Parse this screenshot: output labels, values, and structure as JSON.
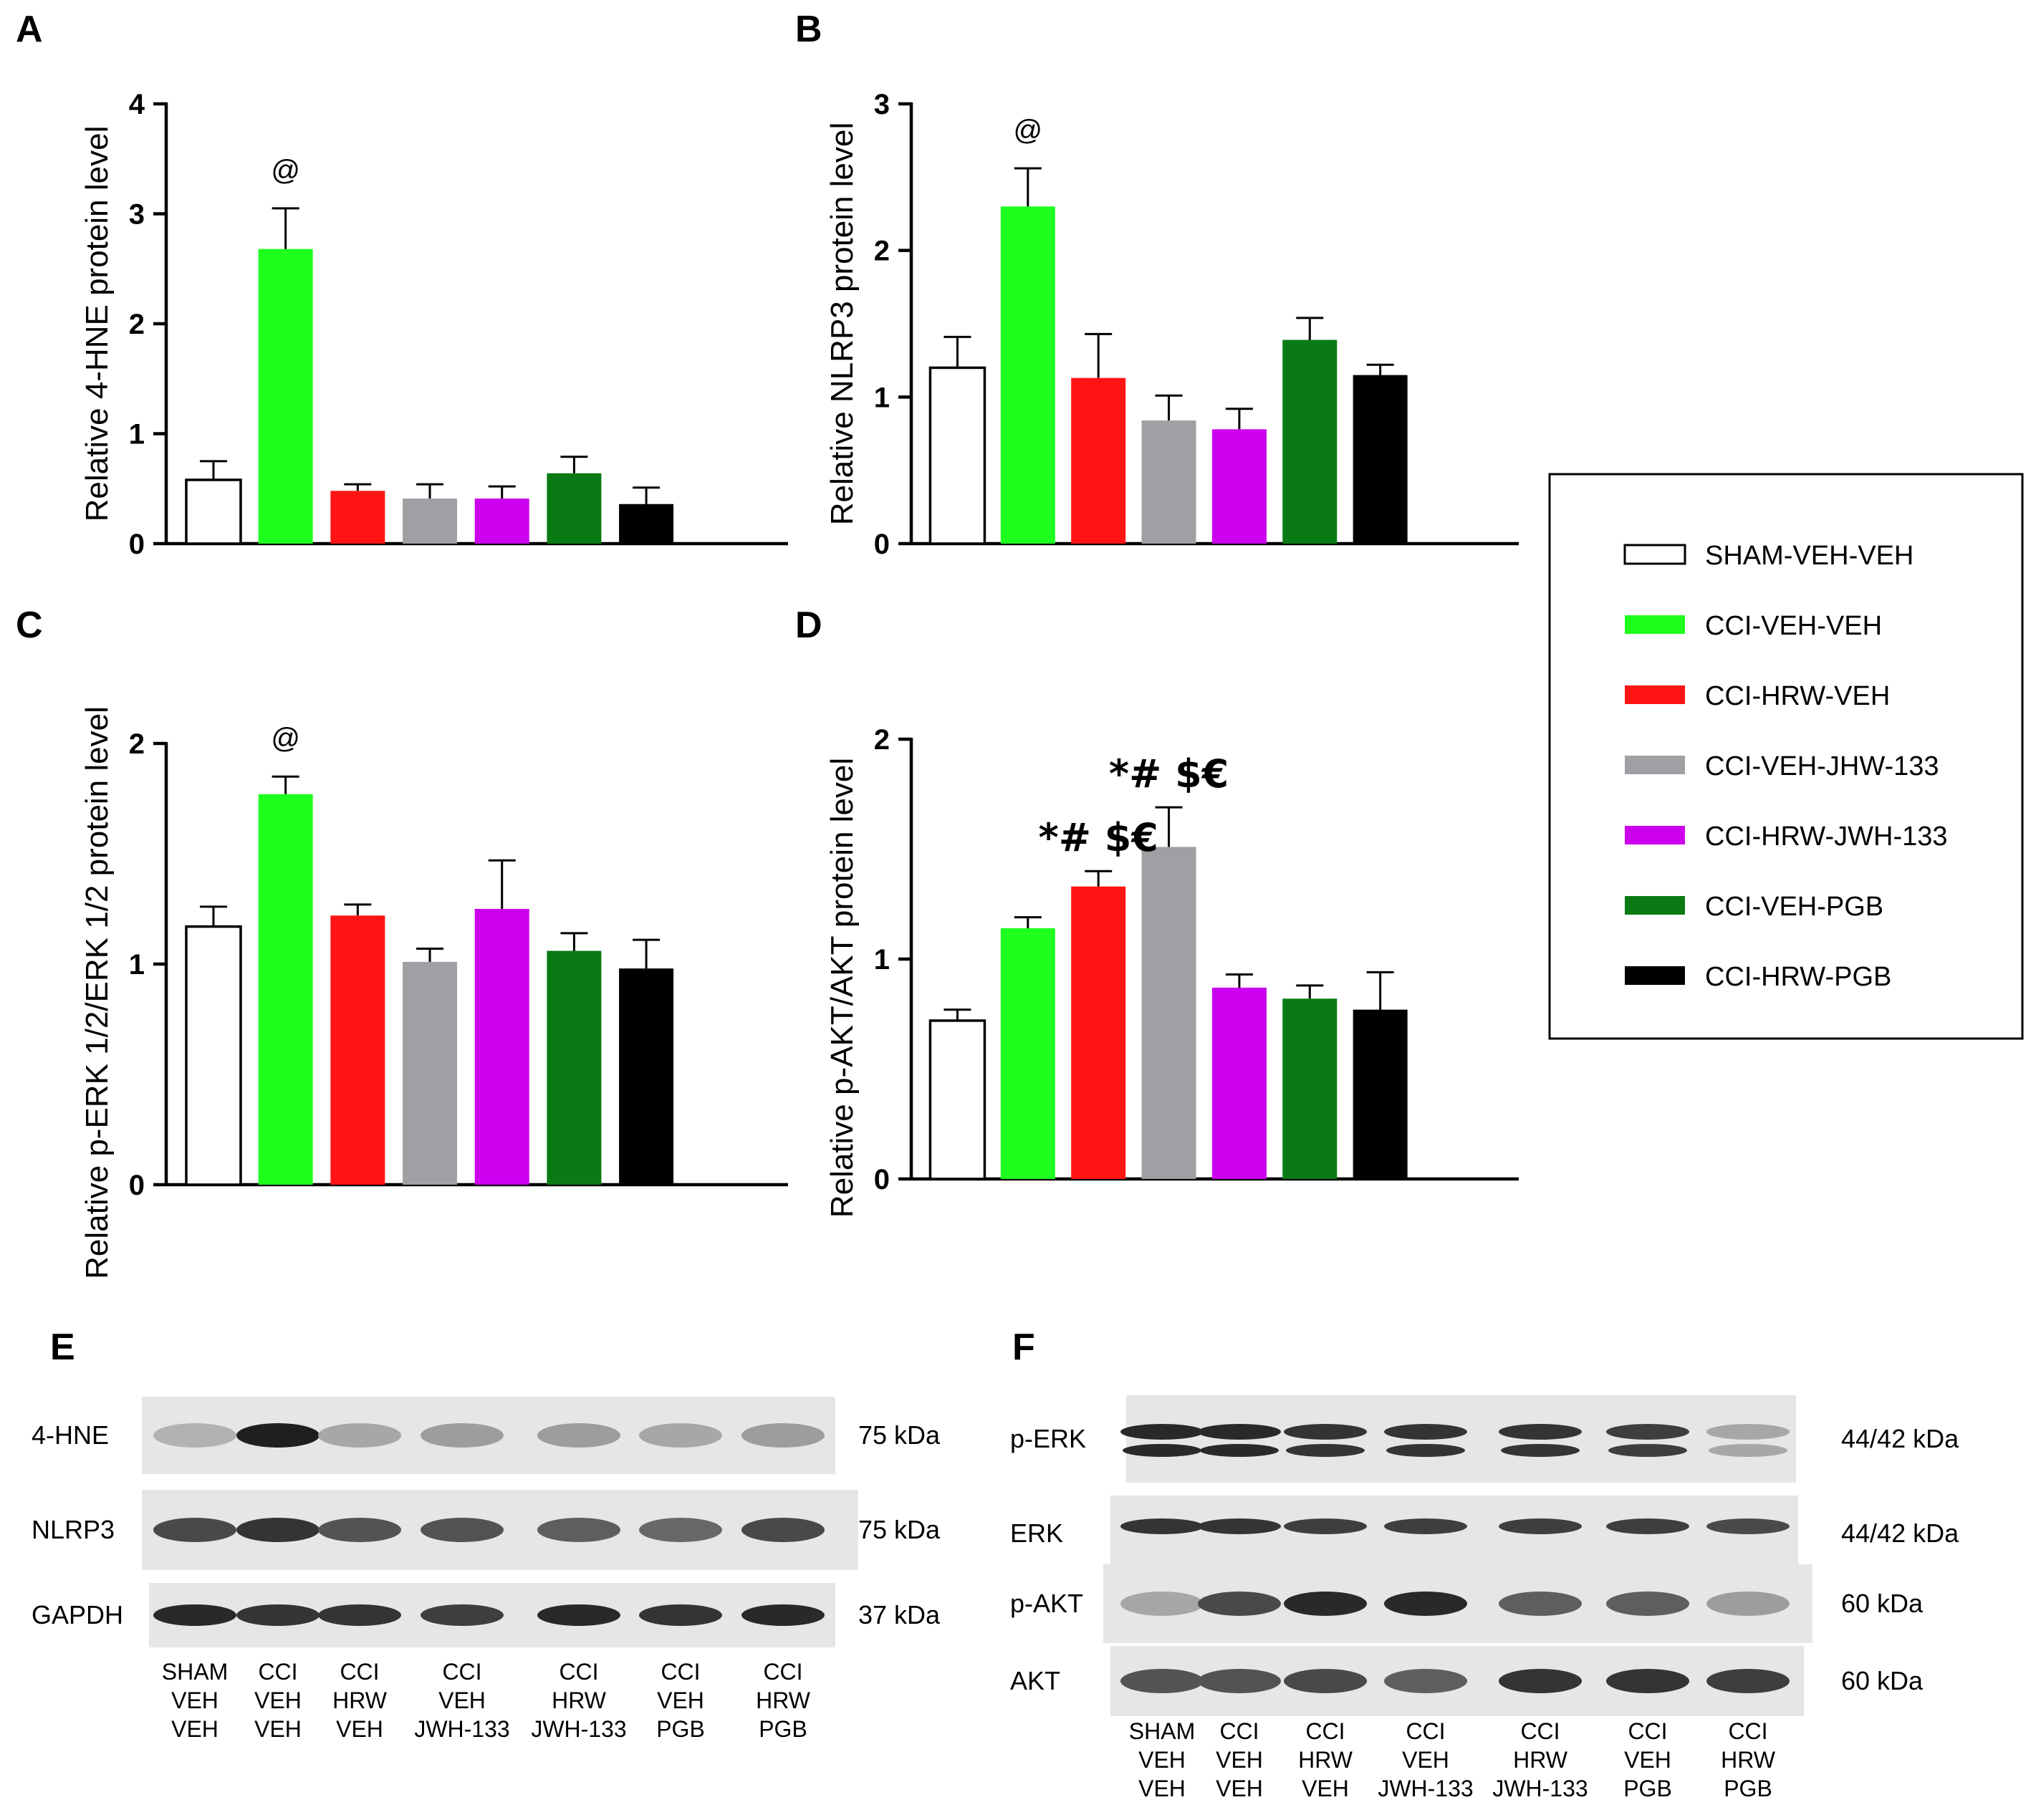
{
  "colors": {
    "SHAM-VEH-VEH": "#ffffff",
    "CCI-VEH-VEH": "#1eff1e",
    "CCI-HRW-VEH": "#ff1414",
    "CCI-VEH-JHW-133": "#a0a0a4",
    "CCI-HRW-JWH-133": "#cc00ee",
    "CCI-VEH-PGB": "#0a7a14",
    "CCI-HRW-PGB": "#000000"
  },
  "legend": {
    "items": [
      "SHAM-VEH-VEH",
      "CCI-VEH-VEH",
      "CCI-HRW-VEH",
      "CCI-VEH-JHW-133",
      "CCI-HRW-JWH-133",
      "CCI-VEH-PGB",
      "CCI-HRW-PGB"
    ]
  },
  "chart_data": [
    {
      "panel": "A",
      "type": "bar",
      "ylabel": "Relative 4-HNE protein level",
      "ylim": [
        0,
        4
      ],
      "yticks": [
        0,
        1,
        2,
        3,
        4
      ],
      "categories": [
        "SHAM-VEH-VEH",
        "CCI-VEH-VEH",
        "CCI-HRW-VEH",
        "CCI-VEH-JHW-133",
        "CCI-HRW-JWH-133",
        "CCI-VEH-PGB",
        "CCI-HRW-PGB"
      ],
      "values": [
        0.58,
        2.68,
        0.48,
        0.41,
        0.41,
        0.64,
        0.36
      ],
      "errors": [
        0.17,
        0.37,
        0.06,
        0.13,
        0.11,
        0.15,
        0.15
      ],
      "annotations": [
        {
          "bar": 1,
          "text": "@",
          "style": "small"
        }
      ]
    },
    {
      "panel": "B",
      "type": "bar",
      "ylabel": "Relative NLRP3 protein level",
      "ylim": [
        0,
        3
      ],
      "yticks": [
        0,
        1,
        2,
        3
      ],
      "categories": [
        "SHAM-VEH-VEH",
        "CCI-VEH-VEH",
        "CCI-HRW-VEH",
        "CCI-VEH-JHW-133",
        "CCI-HRW-JWH-133",
        "CCI-VEH-PGB",
        "CCI-HRW-PGB"
      ],
      "values": [
        1.2,
        2.3,
        1.13,
        0.84,
        0.78,
        1.39,
        1.15
      ],
      "errors": [
        0.21,
        0.26,
        0.3,
        0.17,
        0.14,
        0.15,
        0.07
      ],
      "annotations": [
        {
          "bar": 1,
          "text": "@",
          "style": "small"
        }
      ]
    },
    {
      "panel": "C",
      "type": "bar",
      "ylabel": "Relative p-ERK 1/2/ERK 1/2 protein level",
      "ylim": [
        0,
        2
      ],
      "yticks": [
        0,
        1,
        2
      ],
      "categories": [
        "SHAM-VEH-VEH",
        "CCI-VEH-VEH",
        "CCI-HRW-VEH",
        "CCI-VEH-JHW-133",
        "CCI-HRW-JWH-133",
        "CCI-VEH-PGB",
        "CCI-HRW-PGB"
      ],
      "values": [
        1.17,
        1.77,
        1.22,
        1.01,
        1.25,
        1.06,
        0.98
      ],
      "errors": [
        0.09,
        0.08,
        0.05,
        0.06,
        0.22,
        0.08,
        0.13
      ],
      "annotations": [
        {
          "bar": 1,
          "text": "@",
          "style": "small"
        }
      ]
    },
    {
      "panel": "D",
      "type": "bar",
      "ylabel": "Relative p-AKT/AKT protein level",
      "ylim": [
        0,
        2
      ],
      "yticks": [
        0,
        1,
        2
      ],
      "categories": [
        "SHAM-VEH-VEH",
        "CCI-VEH-VEH",
        "CCI-HRW-VEH",
        "CCI-VEH-JHW-133",
        "CCI-HRW-JWH-133",
        "CCI-VEH-PGB",
        "CCI-HRW-PGB"
      ],
      "values": [
        0.72,
        1.14,
        1.33,
        1.51,
        0.87,
        0.82,
        0.77
      ],
      "errors": [
        0.05,
        0.05,
        0.07,
        0.18,
        0.06,
        0.06,
        0.17
      ],
      "annotations": [
        {
          "bar": 2,
          "text": "*# $€",
          "style": "big"
        },
        {
          "bar": 3,
          "text": "*# $€",
          "style": "big"
        }
      ]
    }
  ],
  "blots": {
    "E": {
      "letter": "E",
      "rows": [
        {
          "label": "4-HNE",
          "kda": "75 kDa",
          "intensity": [
            0.25,
            0.95,
            0.3,
            0.35,
            0.35,
            0.3,
            0.35
          ]
        },
        {
          "label": "NLRP3",
          "kda": "75 kDa",
          "intensity": [
            0.75,
            0.85,
            0.7,
            0.7,
            0.65,
            0.6,
            0.75
          ]
        },
        {
          "label": "GAPDH",
          "kda": "37 kDa",
          "intensity": [
            0.9,
            0.85,
            0.85,
            0.8,
            0.9,
            0.85,
            0.9
          ]
        }
      ],
      "lanes": [
        [
          "SHAM",
          "VEH",
          "VEH"
        ],
        [
          "CCI",
          "VEH",
          "VEH"
        ],
        [
          "CCI",
          "HRW",
          "VEH"
        ],
        [
          "CCI",
          "VEH",
          "JWH-133"
        ],
        [
          "CCI",
          "HRW",
          "JWH-133"
        ],
        [
          "CCI",
          "VEH",
          "PGB"
        ],
        [
          "CCI",
          "HRW",
          "PGB"
        ]
      ]
    },
    "F": {
      "letter": "F",
      "rows": [
        {
          "label": "p-ERK",
          "kda": "44/42 kDa",
          "intensity": [
            0.9,
            0.9,
            0.85,
            0.85,
            0.85,
            0.8,
            0.3
          ]
        },
        {
          "label": "ERK",
          "kda": "44/42 kDa",
          "intensity": [
            0.85,
            0.85,
            0.8,
            0.8,
            0.8,
            0.8,
            0.75
          ]
        },
        {
          "label": "p-AKT",
          "kda": "60 kDa",
          "intensity": [
            0.3,
            0.75,
            0.9,
            0.9,
            0.65,
            0.65,
            0.35
          ]
        },
        {
          "label": "AKT",
          "kda": "60 kDa",
          "intensity": [
            0.7,
            0.7,
            0.75,
            0.65,
            0.85,
            0.85,
            0.8
          ]
        }
      ],
      "lanes": [
        [
          "SHAM",
          "VEH",
          "VEH"
        ],
        [
          "CCI",
          "VEH",
          "VEH"
        ],
        [
          "CCI",
          "HRW",
          "VEH"
        ],
        [
          "CCI",
          "VEH",
          "JWH-133"
        ],
        [
          "CCI",
          "HRW",
          "JWH-133"
        ],
        [
          "CCI",
          "VEH",
          "PGB"
        ],
        [
          "CCI",
          "HRW",
          "PGB"
        ]
      ]
    }
  }
}
